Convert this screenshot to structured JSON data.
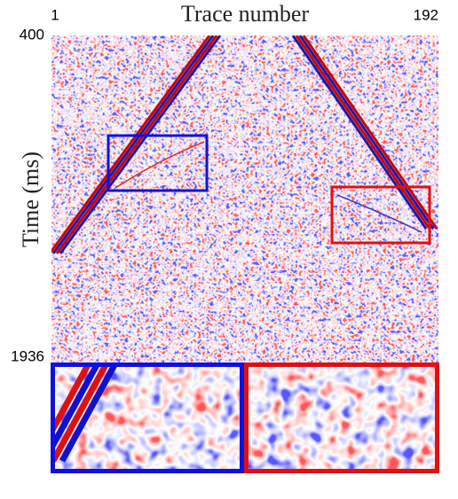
{
  "chart_data": {
    "type": "heatmap",
    "xlabel": "Trace number",
    "ylabel": "Time (ms)",
    "xlim": [
      1,
      192
    ],
    "xticks": [
      1,
      192
    ],
    "ylim": [
      1936,
      400
    ],
    "yticks": [
      400,
      1936
    ]
  }
}
